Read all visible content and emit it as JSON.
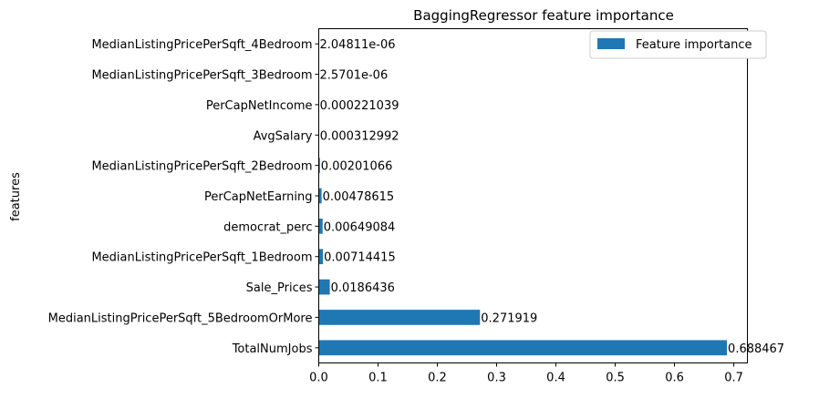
{
  "chart_data": {
    "type": "bar",
    "orientation": "horizontal",
    "title": "BaggingRegressor feature importance",
    "xlabel": "",
    "ylabel": "features",
    "xlim": [
      0,
      0.723
    ],
    "xticks": [
      0.0,
      0.1,
      0.2,
      0.3,
      0.4,
      0.5,
      0.6,
      0.7
    ],
    "xtick_labels": [
      "0.0",
      "0.1",
      "0.2",
      "0.3",
      "0.4",
      "0.5",
      "0.6",
      "0.7"
    ],
    "categories": [
      "MedianListingPricePerSqft_4Bedroom",
      "MedianListingPricePerSqft_3Bedroom",
      "PerCapNetIncome",
      "AvgSalary",
      "MedianListingPricePerSqft_2Bedroom",
      "PerCapNetEarning",
      "democrat_perc",
      "MedianListingPricePerSqft_1Bedroom",
      "Sale_Prices",
      "MedianListingPricePerSqft_5BedroomOrMore",
      "TotalNumJobs"
    ],
    "values": [
      2.04811e-06,
      2.5701e-06,
      0.000221039,
      0.000312992,
      0.00201066,
      0.00478615,
      0.00649084,
      0.00714415,
      0.0186436,
      0.271919,
      0.688467
    ],
    "data_labels": [
      "2.04811e-06",
      "2.5701e-06",
      "0.000221039",
      "0.000312992",
      "0.00201066",
      "0.00478615",
      "0.00649084",
      "0.00714415",
      "0.0186436",
      "0.271919",
      "0.688467"
    ],
    "series": [
      {
        "name": "Feature importance"
      }
    ],
    "legend_position": "top-right",
    "grid": false,
    "colors": {
      "bar": "#1f77b4",
      "axis": "#000000",
      "legend_border": "#cccccc"
    }
  }
}
